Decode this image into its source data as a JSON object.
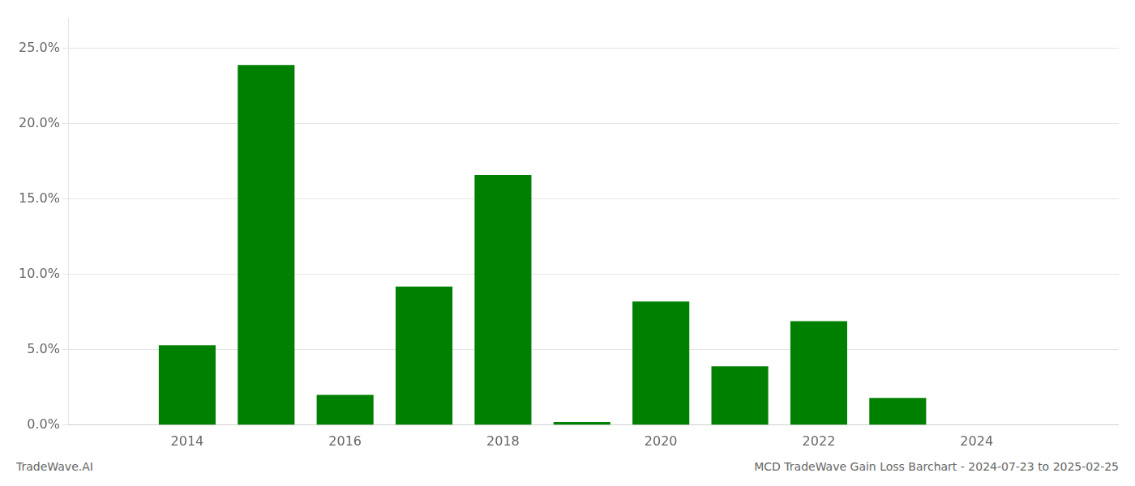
{
  "chart_data": {
    "type": "bar",
    "x": [
      2014,
      2015,
      2016,
      2017,
      2018,
      2019,
      2020,
      2021,
      2022,
      2023,
      2024
    ],
    "values": [
      0.053,
      0.239,
      0.02,
      0.092,
      0.166,
      0.002,
      0.082,
      0.039,
      0.069,
      0.018,
      0.0
    ],
    "color": "#008000",
    "xlim": [
      2012.5,
      2025.8
    ],
    "xticks": [
      2014,
      2016,
      2018,
      2020,
      2022,
      2024
    ],
    "ylim": [
      0,
      0.27
    ],
    "yticks": [
      {
        "value": 0.0,
        "label": "0.0%"
      },
      {
        "value": 0.05,
        "label": "5.0%"
      },
      {
        "value": 0.1,
        "label": "10.0%"
      },
      {
        "value": 0.15,
        "label": "15.0%"
      },
      {
        "value": 0.2,
        "label": "20.0%"
      },
      {
        "value": 0.25,
        "label": "25.0%"
      }
    ],
    "grid": true,
    "annotations": [
      "TradeWave.AI",
      "MCD TradeWave Gain Loss Barchart - 2024-07-23 to 2025-02-25"
    ]
  }
}
